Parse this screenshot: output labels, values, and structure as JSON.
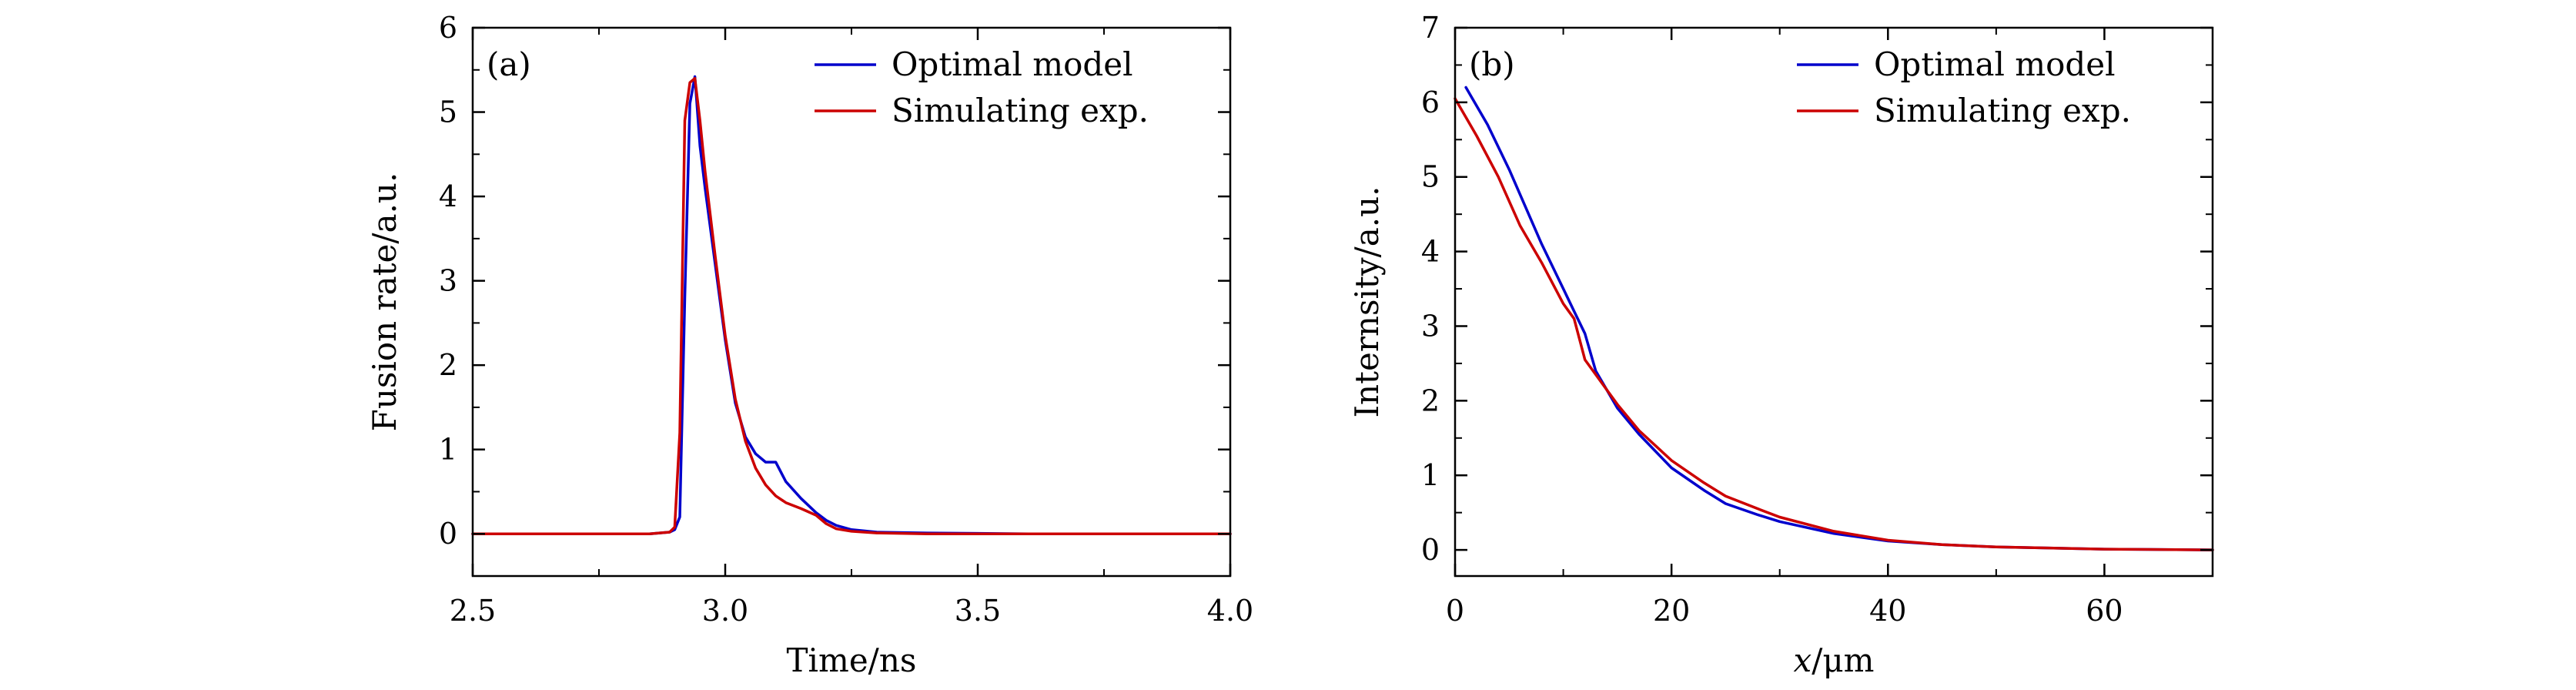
{
  "chart_data": [
    {
      "type": "line",
      "panel_label": "(a)",
      "xlabel": "Time/ns",
      "ylabel": "Fusion rate/a.u.",
      "xlim": [
        2.5,
        4.0
      ],
      "ylim": [
        -0.5,
        6
      ],
      "xticks": [
        2.5,
        3.0,
        3.5,
        4.0
      ],
      "xtick_labels": [
        "2.5",
        "3.0",
        "3.5",
        "4.0"
      ],
      "yticks": [
        0,
        1,
        2,
        3,
        4,
        5,
        6
      ],
      "ytick_labels": [
        "0",
        "1",
        "2",
        "3",
        "4",
        "5",
        "6"
      ],
      "legend_position": "top-right",
      "grid": false,
      "series": [
        {
          "name": "Optimal model",
          "color": "#0000cc",
          "x": [
            2.5,
            2.85,
            2.89,
            2.9,
            2.91,
            2.92,
            2.93,
            2.94,
            2.95,
            2.96,
            2.98,
            3.0,
            3.02,
            3.04,
            3.06,
            3.08,
            3.1,
            3.12,
            3.15,
            3.18,
            3.2,
            3.22,
            3.25,
            3.3,
            3.4,
            3.6,
            4.0
          ],
          "y": [
            0,
            0,
            0.02,
            0.05,
            0.2,
            2.8,
            5.1,
            5.42,
            4.6,
            4.1,
            3.2,
            2.3,
            1.55,
            1.15,
            0.95,
            0.85,
            0.85,
            0.62,
            0.42,
            0.25,
            0.16,
            0.1,
            0.05,
            0.02,
            0.01,
            0,
            0
          ]
        },
        {
          "name": "Simulating exp.",
          "color": "#cc0000",
          "x": [
            2.5,
            2.85,
            2.89,
            2.9,
            2.91,
            2.92,
            2.93,
            2.94,
            2.95,
            2.96,
            2.98,
            3.0,
            3.02,
            3.04,
            3.06,
            3.08,
            3.1,
            3.12,
            3.15,
            3.18,
            3.2,
            3.22,
            3.25,
            3.3,
            3.4,
            3.6,
            4.0
          ],
          "y": [
            0,
            0,
            0.02,
            0.08,
            1.2,
            4.9,
            5.35,
            5.4,
            4.9,
            4.3,
            3.3,
            2.35,
            1.6,
            1.1,
            0.78,
            0.58,
            0.45,
            0.37,
            0.3,
            0.22,
            0.12,
            0.06,
            0.03,
            0.01,
            0,
            0,
            0
          ]
        }
      ]
    },
    {
      "type": "line",
      "panel_label": "(b)",
      "xlabel_italic": "x",
      "xlabel_unit": "/μm",
      "ylabel": "Internsity/a.u.",
      "xlim": [
        0,
        70
      ],
      "ylim": [
        -0.35,
        7
      ],
      "xticks": [
        0,
        20,
        40,
        60
      ],
      "xtick_labels": [
        "0",
        "20",
        "40",
        "60"
      ],
      "yticks": [
        0,
        1,
        2,
        3,
        4,
        5,
        6,
        7
      ],
      "ytick_labels": [
        "0",
        "1",
        "2",
        "3",
        "4",
        "5",
        "6",
        "7"
      ],
      "legend_position": "top-right",
      "grid": false,
      "series": [
        {
          "name": "Optimal model",
          "color": "#0000cc",
          "x": [
            1,
            3,
            5,
            8,
            10,
            11,
            12,
            13,
            15,
            17,
            20,
            23,
            25,
            28,
            30,
            35,
            40,
            45,
            50,
            60,
            70
          ],
          "y": [
            6.2,
            5.7,
            5.1,
            4.1,
            3.5,
            3.2,
            2.9,
            2.4,
            1.9,
            1.55,
            1.1,
            0.8,
            0.62,
            0.47,
            0.38,
            0.22,
            0.12,
            0.07,
            0.04,
            0.01,
            0
          ]
        },
        {
          "name": "Simulating exp.",
          "color": "#cc0000",
          "x": [
            0,
            2,
            4,
            6,
            8,
            10,
            11,
            12,
            13,
            15,
            17,
            20,
            23,
            25,
            28,
            30,
            35,
            40,
            45,
            50,
            60,
            70
          ],
          "y": [
            6.05,
            5.55,
            5.0,
            4.35,
            3.85,
            3.3,
            3.1,
            2.55,
            2.35,
            1.95,
            1.6,
            1.2,
            0.9,
            0.72,
            0.55,
            0.44,
            0.25,
            0.13,
            0.07,
            0.04,
            0.01,
            0
          ]
        }
      ]
    }
  ]
}
